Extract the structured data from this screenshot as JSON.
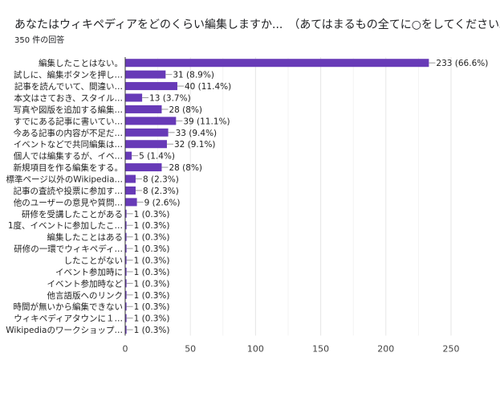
{
  "header": {
    "title": "あなたはウィキペディアをどのくらい編集しますか...　（あてはまるもの全てに○をしてください。）",
    "response_count": "350 件の回答"
  },
  "chart_data": {
    "type": "bar",
    "orientation": "horizontal",
    "categories": [
      "編集したことはない。",
      "試しに、編集ボタンを押し…",
      "記事を読んでいて、間違い…",
      "本文はさておき、スタイル…",
      "写真や図版を追加する編集…",
      "すでにある記事に書いてい…",
      "今ある記事の内容が不足だ…",
      "イベントなどで共同編集は…",
      "個人では編集するが、イベ…",
      "新規項目を作る編集をする。",
      "標準ページ以外のWikipedia…",
      "記事の査読や投票に参加す…",
      "他のユーザーの意見や質問…",
      "研修を受講したことがある",
      "1度、イベントに参加したこ…",
      "編集したことはある",
      "研修の一環でウィキペディ…",
      "したことがない",
      "イベント参加時に",
      "イベント参加時など",
      "他言語版へのリンク",
      "時間が無いから編集できない",
      "ウィキペディアタウンに１…",
      "Wikipediaのワークショップ…"
    ],
    "values": [
      233,
      31,
      40,
      13,
      28,
      39,
      33,
      32,
      5,
      28,
      8,
      8,
      9,
      1,
      1,
      1,
      1,
      1,
      1,
      1,
      1,
      1,
      1,
      1
    ],
    "data_labels": [
      "233 (66.6%)",
      "31 (8.9%)",
      "40 (11.4%)",
      "13 (3.7%)",
      "28 (8%)",
      "39 (11.1%)",
      "33 (9.4%)",
      "32 (9.1%)",
      "5 (1.4%)",
      "28 (8%)",
      "8 (2.3%)",
      "8 (2.3%)",
      "9 (2.6%)",
      "1 (0.3%)",
      "1 (0.3%)",
      "1 (0.3%)",
      "1 (0.3%)",
      "1 (0.3%)",
      "1 (0.3%)",
      "1 (0.3%)",
      "1 (0.3%)",
      "1 (0.3%)",
      "1 (0.3%)",
      "1 (0.3%)"
    ],
    "xlim": [
      0,
      250
    ],
    "xticks": [
      "0",
      "50",
      "100",
      "150",
      "200",
      "250"
    ],
    "grid": true,
    "bar_color": "#673ab7"
  }
}
